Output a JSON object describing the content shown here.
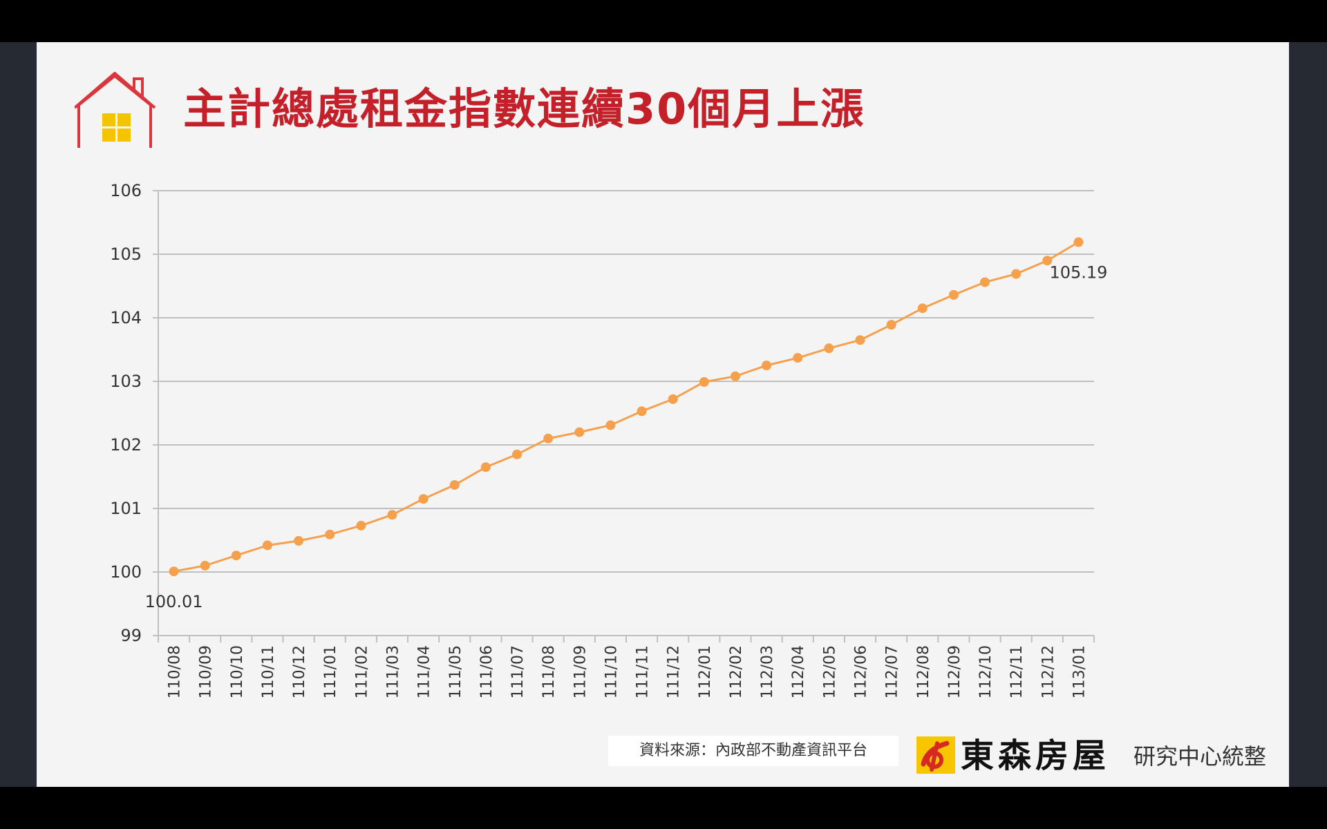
{
  "slide": {
    "title": "主計總處租金指數連續30個月上漲",
    "source": "資料來源：內政部不動產資訊平台",
    "brand_name": "東森房屋",
    "brand_suffix": "研究中心統整"
  },
  "colors": {
    "title": "#c3202a",
    "series": "#f4a04c",
    "grid": "#bfbfbf",
    "house_outline": "#d9363e",
    "window": "#f5c400",
    "logo_yellow": "#f7c600",
    "logo_red": "#d62a20"
  },
  "icons": [
    "house-icon",
    "ettoday-realty-logo-icon"
  ],
  "chart_data": {
    "type": "line",
    "title": "主計總處租金指數連續30個月上漲",
    "xlabel": "",
    "ylabel": "",
    "ylim": [
      99,
      106
    ],
    "yticks": [
      99,
      100,
      101,
      102,
      103,
      104,
      105,
      106
    ],
    "grid": true,
    "legend": "none",
    "categories": [
      "110/08",
      "110/09",
      "110/10",
      "110/11",
      "110/12",
      "111/01",
      "111/02",
      "111/03",
      "111/04",
      "111/05",
      "111/06",
      "111/07",
      "111/08",
      "111/09",
      "111/10",
      "111/11",
      "111/12",
      "112/01",
      "112/02",
      "112/03",
      "112/04",
      "112/05",
      "112/06",
      "112/07",
      "112/08",
      "112/09",
      "112/10",
      "112/11",
      "112/12",
      "113/01"
    ],
    "series": [
      {
        "values": [
          100.01,
          100.1,
          100.26,
          100.42,
          100.49,
          100.59,
          100.73,
          100.9,
          101.15,
          101.37,
          101.65,
          101.85,
          102.1,
          102.2,
          102.31,
          102.53,
          102.72,
          102.99,
          103.08,
          103.25,
          103.37,
          103.52,
          103.65,
          103.89,
          104.15,
          104.36,
          104.56,
          104.69,
          104.9,
          105.19
        ]
      }
    ],
    "data_labels": [
      {
        "index": 0,
        "text": "100.01"
      },
      {
        "index": 29,
        "text": "105.19"
      }
    ]
  }
}
